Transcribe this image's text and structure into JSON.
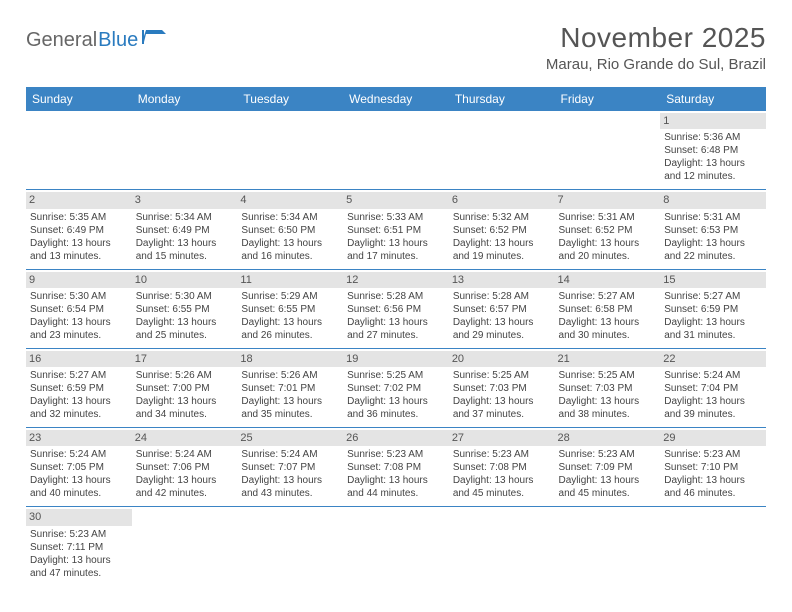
{
  "logo": {
    "part1": "General",
    "part2": "Blue"
  },
  "title": "November 2025",
  "location": "Marau, Rio Grande do Sul, Brazil",
  "colors": {
    "header_bg": "#3b84c4",
    "header_text": "#ffffff",
    "cell_border": "#3b84c4",
    "daynum_bg": "#e4e4e4",
    "text": "#444444",
    "title_text": "#555555"
  },
  "weekdays": [
    "Sunday",
    "Monday",
    "Tuesday",
    "Wednesday",
    "Thursday",
    "Friday",
    "Saturday"
  ],
  "weeks": [
    [
      {
        "day": "",
        "sunrise": "",
        "sunset": "",
        "daylight": ""
      },
      {
        "day": "",
        "sunrise": "",
        "sunset": "",
        "daylight": ""
      },
      {
        "day": "",
        "sunrise": "",
        "sunset": "",
        "daylight": ""
      },
      {
        "day": "",
        "sunrise": "",
        "sunset": "",
        "daylight": ""
      },
      {
        "day": "",
        "sunrise": "",
        "sunset": "",
        "daylight": ""
      },
      {
        "day": "",
        "sunrise": "",
        "sunset": "",
        "daylight": ""
      },
      {
        "day": "1",
        "sunrise": "Sunrise: 5:36 AM",
        "sunset": "Sunset: 6:48 PM",
        "daylight": "Daylight: 13 hours and 12 minutes."
      }
    ],
    [
      {
        "day": "2",
        "sunrise": "Sunrise: 5:35 AM",
        "sunset": "Sunset: 6:49 PM",
        "daylight": "Daylight: 13 hours and 13 minutes."
      },
      {
        "day": "3",
        "sunrise": "Sunrise: 5:34 AM",
        "sunset": "Sunset: 6:49 PM",
        "daylight": "Daylight: 13 hours and 15 minutes."
      },
      {
        "day": "4",
        "sunrise": "Sunrise: 5:34 AM",
        "sunset": "Sunset: 6:50 PM",
        "daylight": "Daylight: 13 hours and 16 minutes."
      },
      {
        "day": "5",
        "sunrise": "Sunrise: 5:33 AM",
        "sunset": "Sunset: 6:51 PM",
        "daylight": "Daylight: 13 hours and 17 minutes."
      },
      {
        "day": "6",
        "sunrise": "Sunrise: 5:32 AM",
        "sunset": "Sunset: 6:52 PM",
        "daylight": "Daylight: 13 hours and 19 minutes."
      },
      {
        "day": "7",
        "sunrise": "Sunrise: 5:31 AM",
        "sunset": "Sunset: 6:52 PM",
        "daylight": "Daylight: 13 hours and 20 minutes."
      },
      {
        "day": "8",
        "sunrise": "Sunrise: 5:31 AM",
        "sunset": "Sunset: 6:53 PM",
        "daylight": "Daylight: 13 hours and 22 minutes."
      }
    ],
    [
      {
        "day": "9",
        "sunrise": "Sunrise: 5:30 AM",
        "sunset": "Sunset: 6:54 PM",
        "daylight": "Daylight: 13 hours and 23 minutes."
      },
      {
        "day": "10",
        "sunrise": "Sunrise: 5:30 AM",
        "sunset": "Sunset: 6:55 PM",
        "daylight": "Daylight: 13 hours and 25 minutes."
      },
      {
        "day": "11",
        "sunrise": "Sunrise: 5:29 AM",
        "sunset": "Sunset: 6:55 PM",
        "daylight": "Daylight: 13 hours and 26 minutes."
      },
      {
        "day": "12",
        "sunrise": "Sunrise: 5:28 AM",
        "sunset": "Sunset: 6:56 PM",
        "daylight": "Daylight: 13 hours and 27 minutes."
      },
      {
        "day": "13",
        "sunrise": "Sunrise: 5:28 AM",
        "sunset": "Sunset: 6:57 PM",
        "daylight": "Daylight: 13 hours and 29 minutes."
      },
      {
        "day": "14",
        "sunrise": "Sunrise: 5:27 AM",
        "sunset": "Sunset: 6:58 PM",
        "daylight": "Daylight: 13 hours and 30 minutes."
      },
      {
        "day": "15",
        "sunrise": "Sunrise: 5:27 AM",
        "sunset": "Sunset: 6:59 PM",
        "daylight": "Daylight: 13 hours and 31 minutes."
      }
    ],
    [
      {
        "day": "16",
        "sunrise": "Sunrise: 5:27 AM",
        "sunset": "Sunset: 6:59 PM",
        "daylight": "Daylight: 13 hours and 32 minutes."
      },
      {
        "day": "17",
        "sunrise": "Sunrise: 5:26 AM",
        "sunset": "Sunset: 7:00 PM",
        "daylight": "Daylight: 13 hours and 34 minutes."
      },
      {
        "day": "18",
        "sunrise": "Sunrise: 5:26 AM",
        "sunset": "Sunset: 7:01 PM",
        "daylight": "Daylight: 13 hours and 35 minutes."
      },
      {
        "day": "19",
        "sunrise": "Sunrise: 5:25 AM",
        "sunset": "Sunset: 7:02 PM",
        "daylight": "Daylight: 13 hours and 36 minutes."
      },
      {
        "day": "20",
        "sunrise": "Sunrise: 5:25 AM",
        "sunset": "Sunset: 7:03 PM",
        "daylight": "Daylight: 13 hours and 37 minutes."
      },
      {
        "day": "21",
        "sunrise": "Sunrise: 5:25 AM",
        "sunset": "Sunset: 7:03 PM",
        "daylight": "Daylight: 13 hours and 38 minutes."
      },
      {
        "day": "22",
        "sunrise": "Sunrise: 5:24 AM",
        "sunset": "Sunset: 7:04 PM",
        "daylight": "Daylight: 13 hours and 39 minutes."
      }
    ],
    [
      {
        "day": "23",
        "sunrise": "Sunrise: 5:24 AM",
        "sunset": "Sunset: 7:05 PM",
        "daylight": "Daylight: 13 hours and 40 minutes."
      },
      {
        "day": "24",
        "sunrise": "Sunrise: 5:24 AM",
        "sunset": "Sunset: 7:06 PM",
        "daylight": "Daylight: 13 hours and 42 minutes."
      },
      {
        "day": "25",
        "sunrise": "Sunrise: 5:24 AM",
        "sunset": "Sunset: 7:07 PM",
        "daylight": "Daylight: 13 hours and 43 minutes."
      },
      {
        "day": "26",
        "sunrise": "Sunrise: 5:23 AM",
        "sunset": "Sunset: 7:08 PM",
        "daylight": "Daylight: 13 hours and 44 minutes."
      },
      {
        "day": "27",
        "sunrise": "Sunrise: 5:23 AM",
        "sunset": "Sunset: 7:08 PM",
        "daylight": "Daylight: 13 hours and 45 minutes."
      },
      {
        "day": "28",
        "sunrise": "Sunrise: 5:23 AM",
        "sunset": "Sunset: 7:09 PM",
        "daylight": "Daylight: 13 hours and 45 minutes."
      },
      {
        "day": "29",
        "sunrise": "Sunrise: 5:23 AM",
        "sunset": "Sunset: 7:10 PM",
        "daylight": "Daylight: 13 hours and 46 minutes."
      }
    ],
    [
      {
        "day": "30",
        "sunrise": "Sunrise: 5:23 AM",
        "sunset": "Sunset: 7:11 PM",
        "daylight": "Daylight: 13 hours and 47 minutes."
      },
      {
        "day": "",
        "sunrise": "",
        "sunset": "",
        "daylight": ""
      },
      {
        "day": "",
        "sunrise": "",
        "sunset": "",
        "daylight": ""
      },
      {
        "day": "",
        "sunrise": "",
        "sunset": "",
        "daylight": ""
      },
      {
        "day": "",
        "sunrise": "",
        "sunset": "",
        "daylight": ""
      },
      {
        "day": "",
        "sunrise": "",
        "sunset": "",
        "daylight": ""
      },
      {
        "day": "",
        "sunrise": "",
        "sunset": "",
        "daylight": ""
      }
    ]
  ]
}
